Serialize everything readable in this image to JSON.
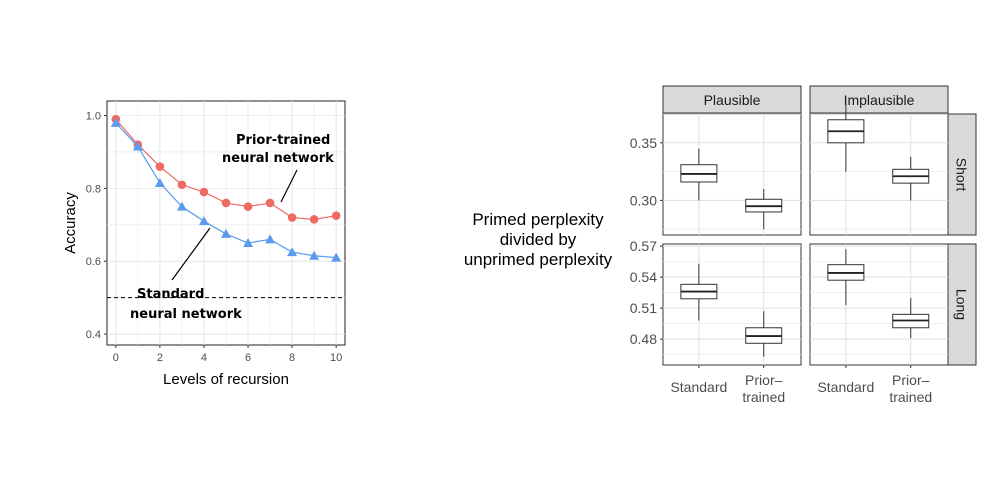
{
  "chart_data": [
    {
      "type": "line",
      "xlabel": "Levels of recursion",
      "ylabel": "Accuracy",
      "xlim": [
        -0.4,
        10.4
      ],
      "ylim": [
        0.37,
        1.04
      ],
      "xticks": [
        "0",
        "2",
        "4",
        "6",
        "8",
        "10"
      ],
      "yticks": [
        "0.4",
        "0.6",
        "0.8",
        "1.0"
      ],
      "grid": true,
      "reference_line": {
        "y": 0.5,
        "style": "dashed"
      },
      "x": [
        0,
        1,
        2,
        3,
        4,
        5,
        6,
        7,
        8,
        9,
        10
      ],
      "series": [
        {
          "color": "#ee6b63",
          "marker": "circle",
          "values": [
            0.99,
            0.92,
            0.86,
            0.81,
            0.79,
            0.76,
            0.75,
            0.76,
            0.72,
            0.715,
            0.725
          ]
        },
        {
          "color": "#5b9bef",
          "marker": "triangle",
          "values": [
            0.98,
            0.915,
            0.815,
            0.75,
            0.71,
            0.675,
            0.65,
            0.66,
            0.625,
            0.615,
            0.61
          ]
        }
      ],
      "annotations": [
        {
          "line1": "Prior-trained",
          "line2": "neural network"
        },
        {
          "line1": "Standard",
          "line2": "neural network"
        }
      ]
    },
    {
      "type": "box",
      "ylabel_lines": [
        "Primed perplexity",
        "divided by",
        "unprimed perplexity"
      ],
      "columns": [
        "Plausible",
        "Implausible"
      ],
      "rows": [
        "Short",
        "Long"
      ],
      "categories": [
        {
          "line1": "Standard",
          "line2": ""
        },
        {
          "line1": "Prior–",
          "line2": "trained"
        }
      ],
      "row_scales": {
        "Short": {
          "ylim": [
            0.27,
            0.375
          ],
          "ticks": [
            "0.30",
            "0.35"
          ]
        },
        "Long": {
          "ylim": [
            0.455,
            0.572
          ],
          "ticks": [
            "0.48",
            "0.51",
            "0.54",
            "0.57"
          ]
        }
      },
      "panels": [
        {
          "col": "Plausible",
          "row": "Short",
          "boxes": [
            {
              "min": 0.3,
              "q1": 0.316,
              "median": 0.323,
              "q3": 0.331,
              "max": 0.345
            },
            {
              "min": 0.275,
              "q1": 0.29,
              "median": 0.295,
              "q3": 0.301,
              "max": 0.31
            }
          ]
        },
        {
          "col": "Implausible",
          "row": "Short",
          "boxes": [
            {
              "min": 0.325,
              "q1": 0.35,
              "median": 0.36,
              "q3": 0.37,
              "max": 0.385
            },
            {
              "min": 0.3,
              "q1": 0.315,
              "median": 0.321,
              "q3": 0.327,
              "max": 0.338
            }
          ]
        },
        {
          "col": "Plausible",
          "row": "Long",
          "boxes": [
            {
              "min": 0.498,
              "q1": 0.519,
              "median": 0.526,
              "q3": 0.533,
              "max": 0.553
            },
            {
              "min": 0.463,
              "q1": 0.476,
              "median": 0.483,
              "q3": 0.491,
              "max": 0.507
            }
          ]
        },
        {
          "col": "Implausible",
          "row": "Long",
          "boxes": [
            {
              "min": 0.513,
              "q1": 0.537,
              "median": 0.544,
              "q3": 0.552,
              "max": 0.567
            },
            {
              "min": 0.481,
              "q1": 0.491,
              "median": 0.498,
              "q3": 0.504,
              "max": 0.52
            }
          ]
        }
      ]
    }
  ]
}
